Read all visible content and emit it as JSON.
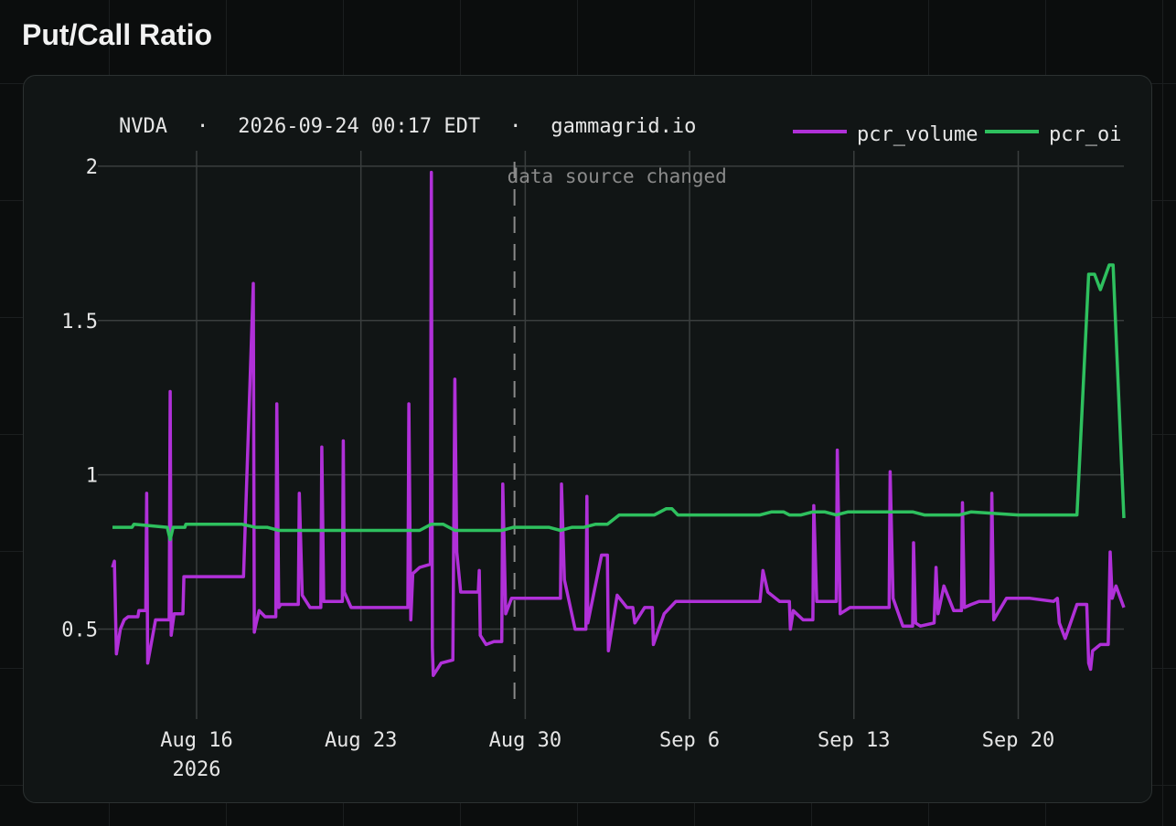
{
  "page": {
    "title": "Put/Call Ratio"
  },
  "chart_data": {
    "type": "line",
    "header": {
      "ticker": "NVDA",
      "timestamp": "2026-09-24 00:17 EDT",
      "source": "gammagrid.io",
      "separator": "·"
    },
    "x_ticks": [
      {
        "date": "2026-08-16",
        "label": "Aug 16",
        "sublabel": "2026"
      },
      {
        "date": "2026-08-23",
        "label": "Aug 23",
        "sublabel": ""
      },
      {
        "date": "2026-08-30",
        "label": "Aug 30",
        "sublabel": ""
      },
      {
        "date": "2026-09-06",
        "label": "Sep 6",
        "sublabel": ""
      },
      {
        "date": "2026-09-13",
        "label": "Sep 13",
        "sublabel": ""
      },
      {
        "date": "2026-09-20",
        "label": "Sep 20",
        "sublabel": ""
      }
    ],
    "xlim": [
      "2026-08-12 10:00",
      "2026-09-24 12:00"
    ],
    "y_ticks": [
      {
        "value": 0.5,
        "label": "0.5"
      },
      {
        "value": 1,
        "label": "1"
      },
      {
        "value": 1.5,
        "label": "1.5"
      },
      {
        "value": 2,
        "label": "2"
      }
    ],
    "ylim": [
      0.25,
      2.05
    ],
    "grid": true,
    "legend_position": "top-right",
    "annotation": {
      "date": "2026-08-29 13:00",
      "label": "data source changed",
      "style": "dashed"
    },
    "series": [
      {
        "name": "pcr_volume",
        "color": "#b030d8",
        "points": [
          [
            "2026-08-12 10:00",
            0.7
          ],
          [
            "2026-08-12 12:00",
            0.72
          ],
          [
            "2026-08-12 14:00",
            0.42
          ],
          [
            "2026-08-12 18:00",
            0.5
          ],
          [
            "2026-08-12 22:00",
            0.53
          ],
          [
            "2026-08-13 02:00",
            0.54
          ],
          [
            "2026-08-13 12:00",
            0.54
          ],
          [
            "2026-08-13 13:00",
            0.56
          ],
          [
            "2026-08-13 20:00",
            0.56
          ],
          [
            "2026-08-13 21:00",
            0.94
          ],
          [
            "2026-08-13 22:00",
            0.39
          ],
          [
            "2026-08-14 06:00",
            0.53
          ],
          [
            "2026-08-14 20:00",
            0.53
          ],
          [
            "2026-08-14 21:00",
            1.27
          ],
          [
            "2026-08-14 22:00",
            0.48
          ],
          [
            "2026-08-15 01:00",
            0.55
          ],
          [
            "2026-08-15 10:00",
            0.55
          ],
          [
            "2026-08-15 11:00",
            0.67
          ],
          [
            "2026-08-17 12:00",
            0.67
          ],
          [
            "2026-08-18 00:00",
            0.67
          ],
          [
            "2026-08-18 10:00",
            1.62
          ],
          [
            "2026-08-18 11:00",
            0.49
          ],
          [
            "2026-08-18 13:00",
            0.52
          ],
          [
            "2026-08-18 16:00",
            0.56
          ],
          [
            "2026-08-18 22:00",
            0.54
          ],
          [
            "2026-08-19 09:00",
            0.54
          ],
          [
            "2026-08-19 10:00",
            1.23
          ],
          [
            "2026-08-19 12:00",
            0.57
          ],
          [
            "2026-08-19 14:00",
            0.58
          ],
          [
            "2026-08-19 20:00",
            0.58
          ],
          [
            "2026-08-20 08:00",
            0.58
          ],
          [
            "2026-08-20 09:00",
            0.94
          ],
          [
            "2026-08-20 12:00",
            0.61
          ],
          [
            "2026-08-20 20:00",
            0.57
          ],
          [
            "2026-08-21 07:00",
            0.57
          ],
          [
            "2026-08-21 08:00",
            1.09
          ],
          [
            "2026-08-21 10:00",
            0.59
          ],
          [
            "2026-08-21 16:00",
            0.59
          ],
          [
            "2026-08-22 05:00",
            0.59
          ],
          [
            "2026-08-22 06:00",
            1.11
          ],
          [
            "2026-08-22 07:00",
            0.62
          ],
          [
            "2026-08-22 14:00",
            0.57
          ],
          [
            "2026-08-25 00:00",
            0.57
          ],
          [
            "2026-08-25 01:00",
            1.23
          ],
          [
            "2026-08-25 03:00",
            0.53
          ],
          [
            "2026-08-25 05:00",
            0.68
          ],
          [
            "2026-08-25 12:00",
            0.7
          ],
          [
            "2026-08-25 23:00",
            0.71
          ],
          [
            "2026-08-26 00:00",
            1.98
          ],
          [
            "2026-08-26 01:00",
            0.44
          ],
          [
            "2026-08-26 02:00",
            0.35
          ],
          [
            "2026-08-26 10:00",
            0.39
          ],
          [
            "2026-08-26 22:00",
            0.4
          ],
          [
            "2026-08-27 00:00",
            1.31
          ],
          [
            "2026-08-27 02:00",
            0.75
          ],
          [
            "2026-08-27 06:00",
            0.62
          ],
          [
            "2026-08-28 00:00",
            0.62
          ],
          [
            "2026-08-28 01:00",
            0.69
          ],
          [
            "2026-08-28 02:00",
            0.48
          ],
          [
            "2026-08-28 08:00",
            0.45
          ],
          [
            "2026-08-28 16:00",
            0.46
          ],
          [
            "2026-08-29 00:00",
            0.46
          ],
          [
            "2026-08-29 01:00",
            0.97
          ],
          [
            "2026-08-29 04:00",
            0.55
          ],
          [
            "2026-08-29 10:00",
            0.6
          ],
          [
            "2026-08-31 12:00",
            0.6
          ],
          [
            "2026-08-31 13:00",
            0.97
          ],
          [
            "2026-08-31 16:00",
            0.66
          ],
          [
            "2026-09-01 03:00",
            0.5
          ],
          [
            "2026-09-01 14:00",
            0.5
          ],
          [
            "2026-09-01 15:00",
            0.93
          ],
          [
            "2026-09-01 16:00",
            0.52
          ],
          [
            "2026-09-02 06:00",
            0.74
          ],
          [
            "2026-09-02 12:00",
            0.74
          ],
          [
            "2026-09-02 13:00",
            0.43
          ],
          [
            "2026-09-02 22:00",
            0.61
          ],
          [
            "2026-09-03 08:00",
            0.57
          ],
          [
            "2026-09-03 14:00",
            0.57
          ],
          [
            "2026-09-03 16:00",
            0.52
          ],
          [
            "2026-09-04 02:00",
            0.57
          ],
          [
            "2026-09-04 10:00",
            0.57
          ],
          [
            "2026-09-04 11:00",
            0.45
          ],
          [
            "2026-09-04 22:00",
            0.55
          ],
          [
            "2026-09-05 10:00",
            0.59
          ],
          [
            "2026-09-06 00:00",
            0.59
          ],
          [
            "2026-09-09 00:00",
            0.59
          ],
          [
            "2026-09-09 03:00",
            0.69
          ],
          [
            "2026-09-09 08:00",
            0.62
          ],
          [
            "2026-09-09 20:00",
            0.59
          ],
          [
            "2026-09-10 06:00",
            0.59
          ],
          [
            "2026-09-10 07:00",
            0.5
          ],
          [
            "2026-09-10 10:00",
            0.56
          ],
          [
            "2026-09-10 20:00",
            0.53
          ],
          [
            "2026-09-11 06:00",
            0.53
          ],
          [
            "2026-09-11 07:00",
            0.9
          ],
          [
            "2026-09-11 10:00",
            0.59
          ],
          [
            "2026-09-11 22:00",
            0.59
          ],
          [
            "2026-09-12 06:00",
            0.59
          ],
          [
            "2026-09-12 07:00",
            1.08
          ],
          [
            "2026-09-12 10:00",
            0.55
          ],
          [
            "2026-09-12 20:00",
            0.57
          ],
          [
            "2026-09-14 12:00",
            0.57
          ],
          [
            "2026-09-14 13:00",
            1.01
          ],
          [
            "2026-09-14 16:00",
            0.6
          ],
          [
            "2026-09-15 02:00",
            0.51
          ],
          [
            "2026-09-15 12:00",
            0.51
          ],
          [
            "2026-09-15 13:00",
            0.78
          ],
          [
            "2026-09-15 15:00",
            0.52
          ],
          [
            "2026-09-15 20:00",
            0.51
          ],
          [
            "2026-09-16 10:00",
            0.52
          ],
          [
            "2026-09-16 12:00",
            0.7
          ],
          [
            "2026-09-16 14:00",
            0.55
          ],
          [
            "2026-09-16 20:00",
            0.64
          ],
          [
            "2026-09-17 06:00",
            0.56
          ],
          [
            "2026-09-17 14:00",
            0.56
          ],
          [
            "2026-09-17 15:00",
            0.91
          ],
          [
            "2026-09-17 17:00",
            0.57
          ],
          [
            "2026-09-18 00:00",
            0.58
          ],
          [
            "2026-09-18 08:00",
            0.59
          ],
          [
            "2026-09-18 20:00",
            0.59
          ],
          [
            "2026-09-18 21:00",
            0.94
          ],
          [
            "2026-09-18 23:00",
            0.53
          ],
          [
            "2026-09-19 12:00",
            0.6
          ],
          [
            "2026-09-20 12:00",
            0.6
          ],
          [
            "2026-09-21 12:00",
            0.59
          ],
          [
            "2026-09-21 16:00",
            0.6
          ],
          [
            "2026-09-21 18:00",
            0.52
          ],
          [
            "2026-09-22 00:00",
            0.47
          ],
          [
            "2026-09-22 12:00",
            0.58
          ],
          [
            "2026-09-22 22:00",
            0.58
          ],
          [
            "2026-09-23 00:00",
            0.39
          ],
          [
            "2026-09-23 02:00",
            0.37
          ],
          [
            "2026-09-23 04:00",
            0.43
          ],
          [
            "2026-09-23 12:00",
            0.45
          ],
          [
            "2026-09-23 20:00",
            0.45
          ],
          [
            "2026-09-23 22:00",
            0.75
          ],
          [
            "2026-09-24 00:00",
            0.6
          ],
          [
            "2026-09-24 04:00",
            0.64
          ],
          [
            "2026-09-24 12:00",
            0.57
          ]
        ]
      },
      {
        "name": "pcr_oi",
        "color": "#2ec05e",
        "points": [
          [
            "2026-08-12 10:00",
            0.83
          ],
          [
            "2026-08-13 06:00",
            0.83
          ],
          [
            "2026-08-13 08:00",
            0.84
          ],
          [
            "2026-08-14 18:00",
            0.83
          ],
          [
            "2026-08-14 21:00",
            0.79
          ],
          [
            "2026-08-15 00:00",
            0.83
          ],
          [
            "2026-08-15 12:00",
            0.83
          ],
          [
            "2026-08-15 13:00",
            0.84
          ],
          [
            "2026-08-17 12:00",
            0.84
          ],
          [
            "2026-08-17 22:00",
            0.84
          ],
          [
            "2026-08-18 12:00",
            0.83
          ],
          [
            "2026-08-19 00:00",
            0.83
          ],
          [
            "2026-08-19 12:00",
            0.82
          ],
          [
            "2026-08-22 12:00",
            0.82
          ],
          [
            "2026-08-23 00:00",
            0.82
          ],
          [
            "2026-08-25 12:00",
            0.82
          ],
          [
            "2026-08-26 00:00",
            0.84
          ],
          [
            "2026-08-26 12:00",
            0.84
          ],
          [
            "2026-08-27 00:00",
            0.82
          ],
          [
            "2026-08-29 00:00",
            0.82
          ],
          [
            "2026-08-29 12:00",
            0.83
          ],
          [
            "2026-08-31 00:00",
            0.83
          ],
          [
            "2026-08-31 12:00",
            0.82
          ],
          [
            "2026-09-01 00:00",
            0.83
          ],
          [
            "2026-09-01 12:00",
            0.83
          ],
          [
            "2026-09-02 00:00",
            0.84
          ],
          [
            "2026-09-02 12:00",
            0.84
          ],
          [
            "2026-09-03 00:00",
            0.87
          ],
          [
            "2026-09-04 12:00",
            0.87
          ],
          [
            "2026-09-05 00:00",
            0.89
          ],
          [
            "2026-09-05 06:00",
            0.89
          ],
          [
            "2026-09-05 12:00",
            0.87
          ],
          [
            "2026-09-09 00:00",
            0.87
          ],
          [
            "2026-09-09 12:00",
            0.88
          ],
          [
            "2026-09-10 00:00",
            0.88
          ],
          [
            "2026-09-10 06:00",
            0.87
          ],
          [
            "2026-09-10 18:00",
            0.87
          ],
          [
            "2026-09-11 06:00",
            0.88
          ],
          [
            "2026-09-11 18:00",
            0.88
          ],
          [
            "2026-09-12 06:00",
            0.87
          ],
          [
            "2026-09-12 18:00",
            0.88
          ],
          [
            "2026-09-15 12:00",
            0.88
          ],
          [
            "2026-09-16 00:00",
            0.87
          ],
          [
            "2026-09-17 12:00",
            0.87
          ],
          [
            "2026-09-18 00:00",
            0.88
          ],
          [
            "2026-09-20 00:00",
            0.87
          ],
          [
            "2026-09-22 12:00",
            0.87
          ],
          [
            "2026-09-23 00:00",
            1.65
          ],
          [
            "2026-09-23 06:00",
            1.65
          ],
          [
            "2026-09-23 12:00",
            1.6
          ],
          [
            "2026-09-23 21:00",
            1.68
          ],
          [
            "2026-09-24 01:00",
            1.68
          ],
          [
            "2026-09-24 12:00",
            0.86
          ]
        ]
      }
    ]
  }
}
